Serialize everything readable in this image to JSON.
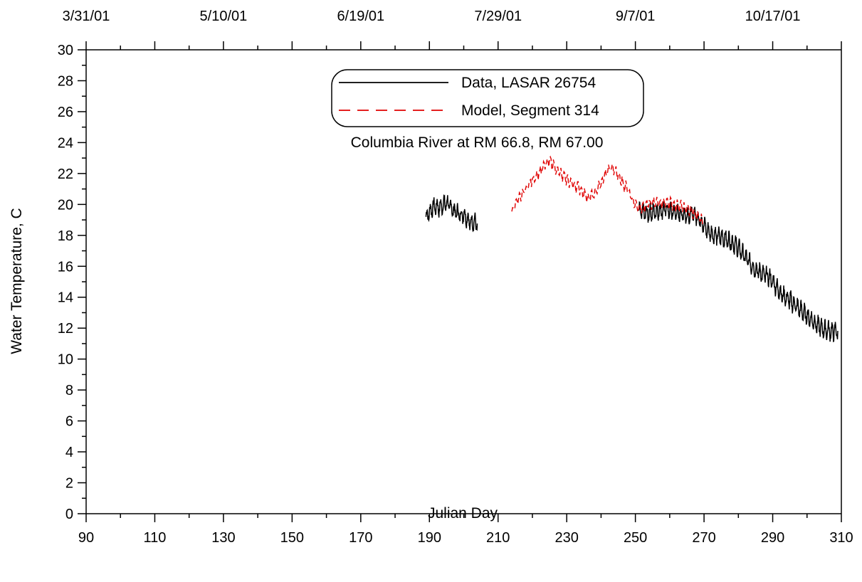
{
  "chart_data": {
    "type": "line",
    "title": "",
    "annotation": "Columbia River at RM 66.8, RM 67.00",
    "xlabel": "Julian Day",
    "ylabel": "Water Temperature, C",
    "xlim": [
      90,
      310
    ],
    "ylim": [
      0,
      30
    ],
    "x_ticks": [
      "90",
      "110",
      "130",
      "150",
      "170",
      "190",
      "210",
      "230",
      "250",
      "270",
      "290",
      "310"
    ],
    "y_ticks": [
      "0",
      "2",
      "4",
      "6",
      "8",
      "10",
      "12",
      "14",
      "16",
      "18",
      "20",
      "22",
      "24",
      "26",
      "28",
      "30"
    ],
    "top_axis_dates": [
      "3/31/01",
      "5/10/01",
      "6/19/01",
      "7/29/01",
      "9/7/01",
      "10/17/01"
    ],
    "top_axis_date_days": [
      90,
      130,
      170,
      210,
      250,
      290
    ],
    "grid": false,
    "legend_position": "top-center",
    "series": [
      {
        "name": "Data, LASAR 26754",
        "color": "#000000",
        "style": "solid",
        "segments": [
          {
            "x": [
              189,
              190,
              191,
              192,
              193,
              194,
              195,
              196,
              197,
              198,
              199,
              200,
              201,
              202,
              203,
              204
            ],
            "y": [
              19.2,
              19.5,
              19.8,
              19.9,
              19.8,
              20.0,
              20.1,
              19.9,
              19.6,
              19.5,
              19.3,
              19.4,
              19.1,
              18.8,
              18.9,
              18.7
            ]
          },
          {
            "x": [
              251,
              253,
              255,
              257,
              259,
              261,
              263,
              265,
              267,
              269,
              271,
              273,
              275,
              277,
              279,
              281,
              283,
              285,
              287,
              289,
              291,
              293,
              295,
              297,
              299,
              301,
              303,
              305,
              307,
              309
            ],
            "y": [
              19.5,
              19.4,
              19.5,
              19.6,
              19.7,
              19.5,
              19.4,
              19.3,
              19.4,
              19.0,
              18.3,
              18.0,
              17.9,
              17.7,
              17.4,
              16.9,
              16.3,
              15.8,
              15.5,
              15.3,
              14.7,
              14.1,
              13.8,
              13.4,
              13.0,
              12.6,
              12.2,
              11.9,
              11.8,
              11.8
            ]
          }
        ],
        "band": 0.45
      },
      {
        "name": "Model, Segment 314",
        "color": "#e00000",
        "style": "dashed",
        "x": [
          214,
          216,
          218,
          220,
          222,
          224,
          225,
          226,
          228,
          230,
          232,
          234,
          236,
          238,
          240,
          242,
          243,
          244,
          246,
          248,
          250,
          252,
          254,
          256,
          258,
          260,
          262,
          264,
          266,
          268,
          270
        ],
        "y": [
          19.6,
          20.3,
          21.0,
          21.6,
          22.1,
          22.6,
          22.8,
          22.6,
          22.0,
          21.6,
          21.3,
          21.0,
          20.5,
          20.6,
          21.4,
          22.2,
          22.4,
          22.2,
          21.5,
          20.9,
          20.0,
          19.8,
          20.0,
          20.1,
          20.2,
          20.1,
          19.9,
          19.8,
          19.6,
          19.3,
          18.9
        ],
        "band": 0.3
      }
    ]
  }
}
